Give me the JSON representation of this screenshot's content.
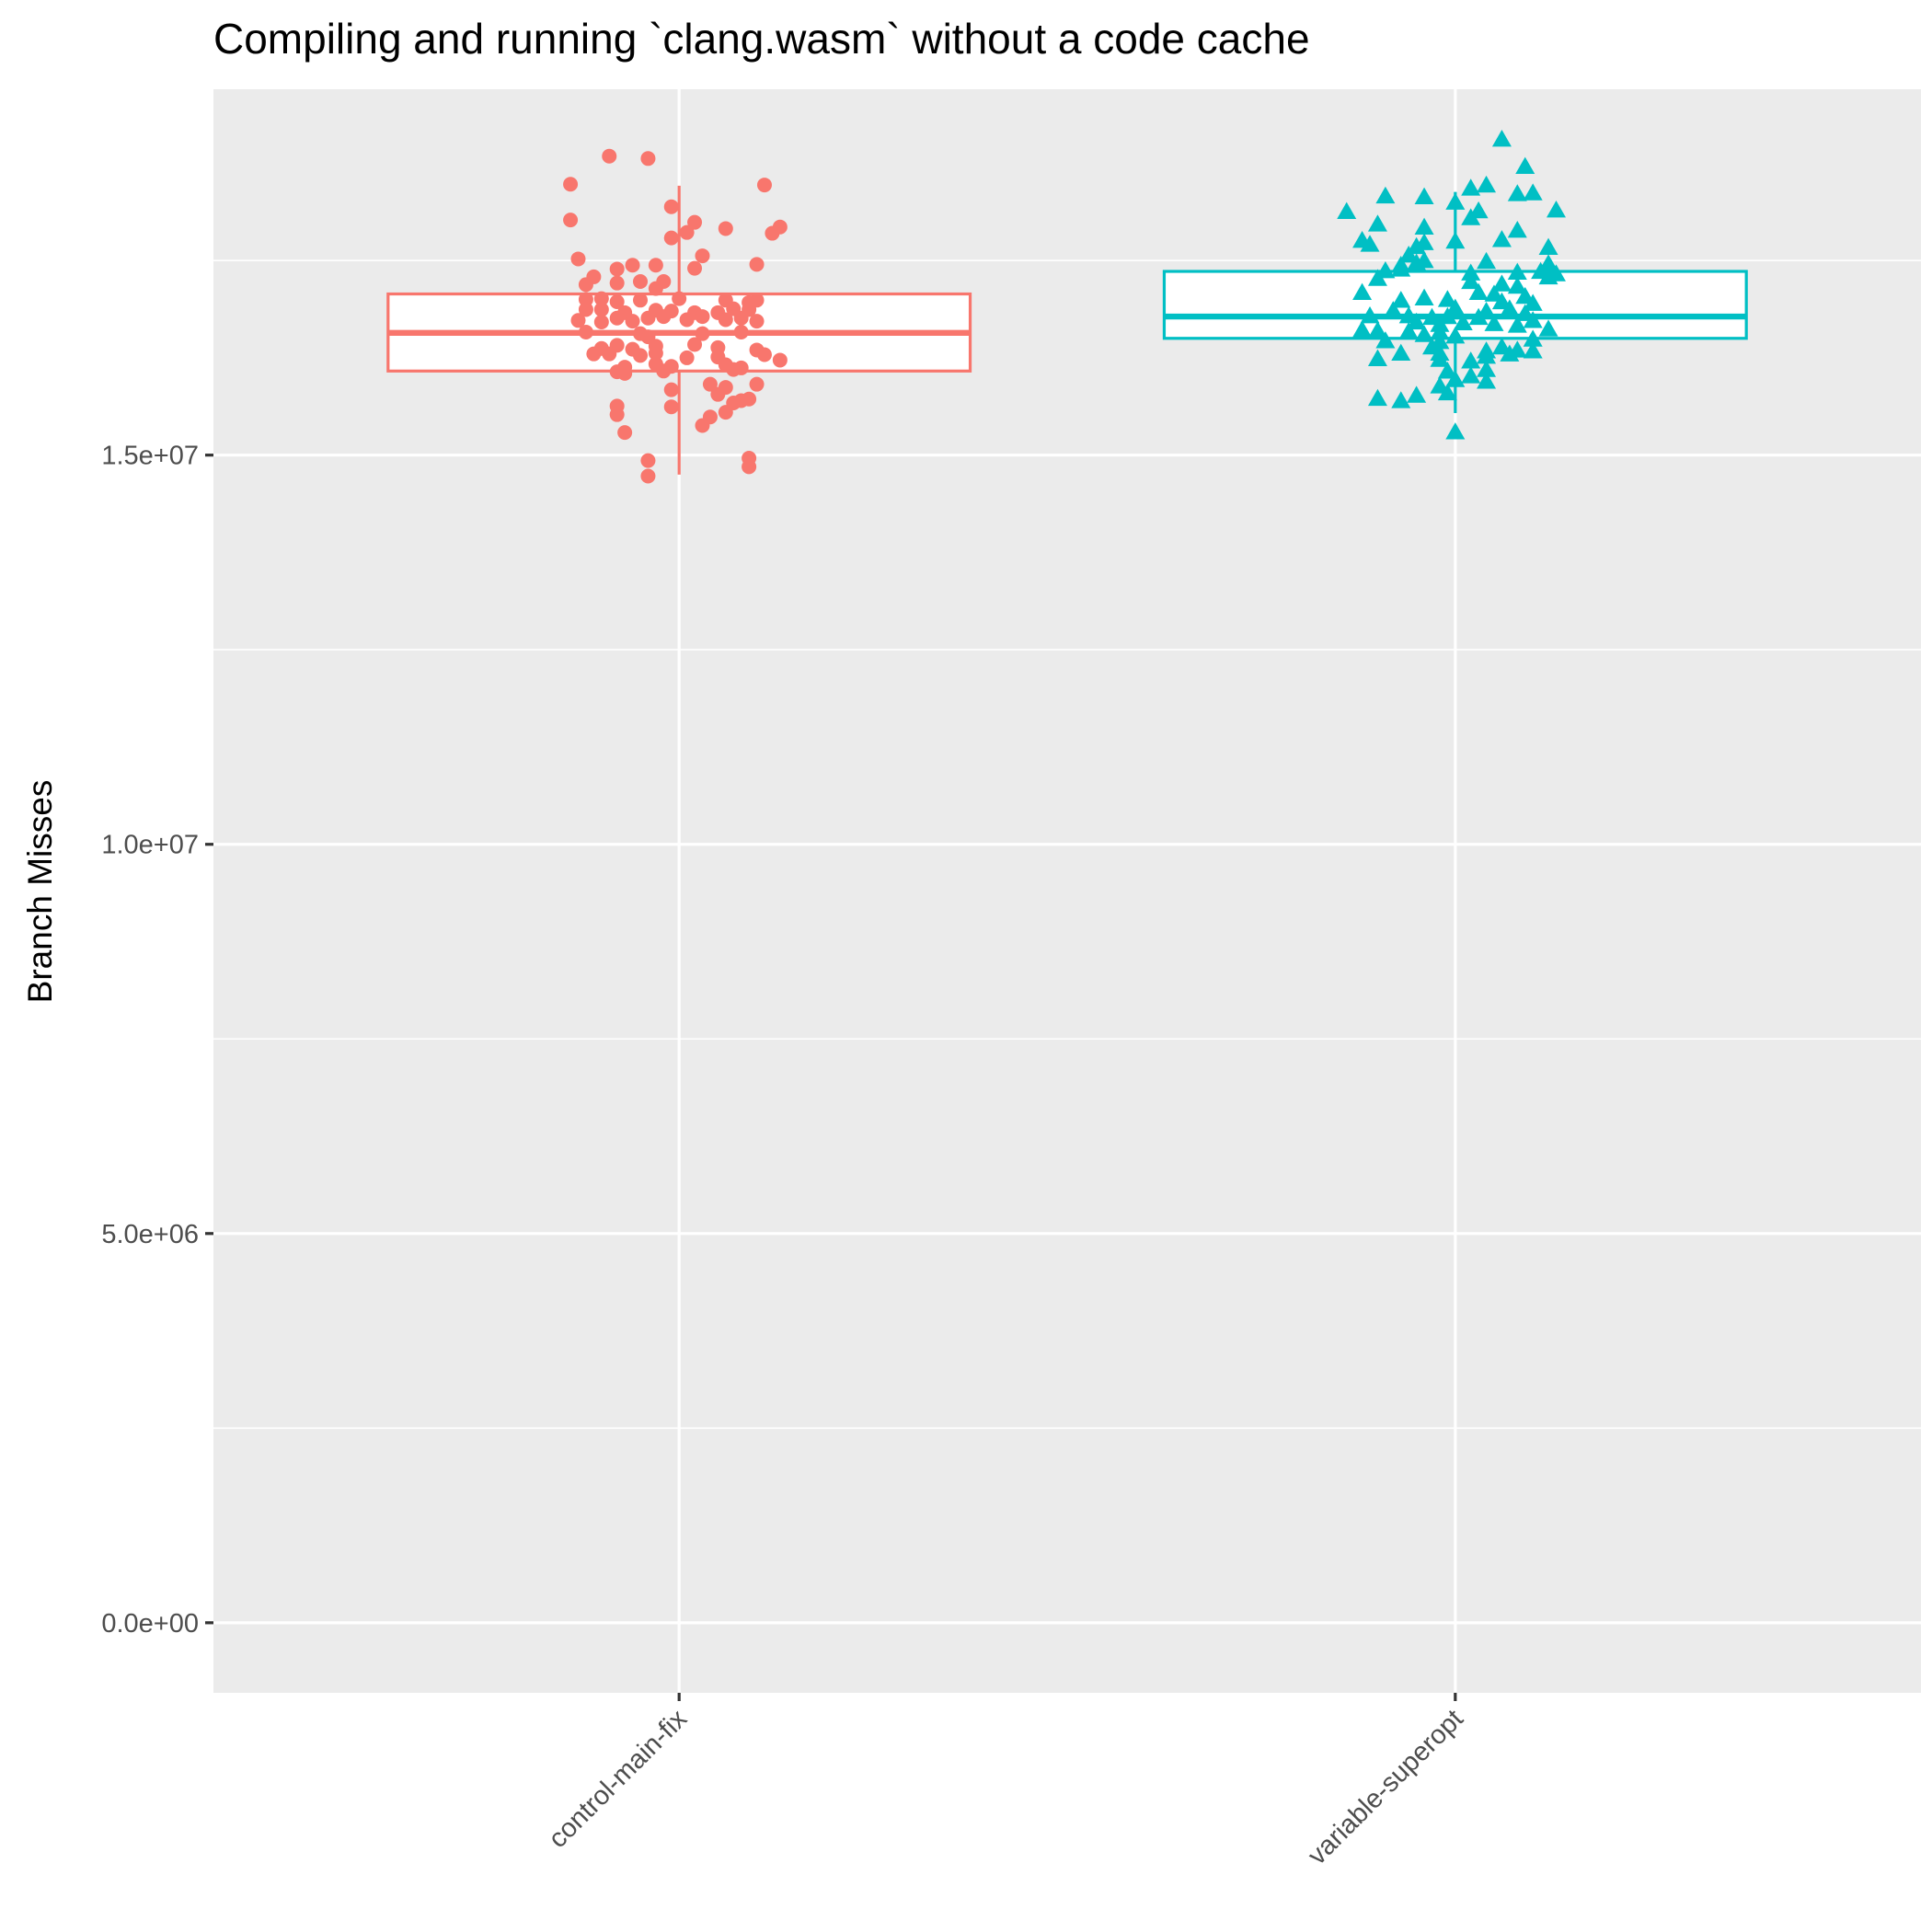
{
  "chart_data": {
    "type": "box",
    "title": "Compiling and running `clang.wasm` without a code cache",
    "xlabel": "",
    "ylabel": "Branch Misses",
    "ylim": [
      -900000,
      19700000
    ],
    "y_ticks": [
      0,
      5000000,
      10000000,
      15000000
    ],
    "y_tick_labels": [
      "0.0e+00",
      "5.0e+06",
      "1.0e+07",
      "1.5e+07"
    ],
    "grid": true,
    "legend": "none",
    "categories": [
      "control-main-fix",
      "variable-superopt"
    ],
    "series": [
      {
        "category": "control-main-fix",
        "color": "#F8766D",
        "marker": "circle",
        "box": {
          "whisker_low": 14750000,
          "q1": 16080000,
          "median": 16570000,
          "q3": 17070000,
          "whisker_high": 18460000
        },
        "points": [
          {
            "j": -0.09,
            "y": 18840000
          },
          {
            "j": -0.04,
            "y": 18810000
          },
          {
            "j": -0.14,
            "y": 18480000
          },
          {
            "j": 0.11,
            "y": 18470000
          },
          {
            "j": -0.01,
            "y": 18190000
          },
          {
            "j": -0.14,
            "y": 18020000
          },
          {
            "j": 0.02,
            "y": 17990000
          },
          {
            "j": 0.13,
            "y": 17930000
          },
          {
            "j": 0.06,
            "y": 17910000
          },
          {
            "j": 0.01,
            "y": 17860000
          },
          {
            "j": 0.12,
            "y": 17850000
          },
          {
            "j": -0.01,
            "y": 17790000
          },
          {
            "j": 0.03,
            "y": 17560000
          },
          {
            "j": -0.13,
            "y": 17520000
          },
          {
            "j": 0.1,
            "y": 17450000
          },
          {
            "j": -0.06,
            "y": 17440000
          },
          {
            "j": -0.03,
            "y": 17440000
          },
          {
            "j": -0.08,
            "y": 17390000
          },
          {
            "j": -0.02,
            "y": 17230000
          },
          {
            "j": 0.02,
            "y": 17400000
          },
          {
            "j": -0.11,
            "y": 17290000
          },
          {
            "j": -0.12,
            "y": 17190000
          },
          {
            "j": -0.05,
            "y": 17230000
          },
          {
            "j": -0.08,
            "y": 17210000
          },
          {
            "j": -0.03,
            "y": 17140000
          },
          {
            "j": -0.12,
            "y": 17000000
          },
          {
            "j": -0.1,
            "y": 17010000
          },
          {
            "j": -0.08,
            "y": 16970000
          },
          {
            "j": -0.05,
            "y": 16990000
          },
          {
            "j": 0.0,
            "y": 17010000
          },
          {
            "j": 0.06,
            "y": 16990000
          },
          {
            "j": 0.09,
            "y": 16960000
          },
          {
            "j": 0.1,
            "y": 16990000
          },
          {
            "j": -0.12,
            "y": 16870000
          },
          {
            "j": -0.1,
            "y": 16870000
          },
          {
            "j": -0.07,
            "y": 16830000
          },
          {
            "j": -0.03,
            "y": 16860000
          },
          {
            "j": -0.01,
            "y": 16850000
          },
          {
            "j": 0.02,
            "y": 16830000
          },
          {
            "j": 0.05,
            "y": 16830000
          },
          {
            "j": 0.07,
            "y": 16880000
          },
          {
            "j": 0.09,
            "y": 16870000
          },
          {
            "j": -0.13,
            "y": 16730000
          },
          {
            "j": -0.1,
            "y": 16710000
          },
          {
            "j": -0.08,
            "y": 16760000
          },
          {
            "j": -0.06,
            "y": 16720000
          },
          {
            "j": -0.04,
            "y": 16760000
          },
          {
            "j": -0.02,
            "y": 16780000
          },
          {
            "j": 0.01,
            "y": 16740000
          },
          {
            "j": 0.03,
            "y": 16780000
          },
          {
            "j": 0.06,
            "y": 16740000
          },
          {
            "j": 0.08,
            "y": 16760000
          },
          {
            "j": 0.1,
            "y": 16720000
          },
          {
            "j": -0.12,
            "y": 16580000
          },
          {
            "j": -0.05,
            "y": 16560000
          },
          {
            "j": 0.03,
            "y": 16560000
          },
          {
            "j": 0.08,
            "y": 16580000
          },
          {
            "j": -0.04,
            "y": 16520000
          },
          {
            "j": -0.1,
            "y": 16370000
          },
          {
            "j": -0.08,
            "y": 16410000
          },
          {
            "j": -0.06,
            "y": 16360000
          },
          {
            "j": -0.03,
            "y": 16400000
          },
          {
            "j": 0.02,
            "y": 16420000
          },
          {
            "j": 0.05,
            "y": 16380000
          },
          {
            "j": 0.1,
            "y": 16350000
          },
          {
            "j": -0.11,
            "y": 16300000
          },
          {
            "j": -0.09,
            "y": 16300000
          },
          {
            "j": -0.05,
            "y": 16280000
          },
          {
            "j": -0.03,
            "y": 16310000
          },
          {
            "j": 0.01,
            "y": 16250000
          },
          {
            "j": 0.05,
            "y": 16260000
          },
          {
            "j": 0.11,
            "y": 16290000
          },
          {
            "j": 0.13,
            "y": 16220000
          },
          {
            "j": -0.07,
            "y": 16130000
          },
          {
            "j": -0.03,
            "y": 16170000
          },
          {
            "j": -0.01,
            "y": 16140000
          },
          {
            "j": 0.06,
            "y": 16160000
          },
          {
            "j": 0.08,
            "y": 16120000
          },
          {
            "j": -0.08,
            "y": 16070000
          },
          {
            "j": -0.07,
            "y": 16050000
          },
          {
            "j": -0.02,
            "y": 16080000
          },
          {
            "j": 0.07,
            "y": 16100000
          },
          {
            "j": 0.04,
            "y": 15910000
          },
          {
            "j": 0.06,
            "y": 15870000
          },
          {
            "j": 0.1,
            "y": 15910000
          },
          {
            "j": -0.01,
            "y": 15840000
          },
          {
            "j": 0.05,
            "y": 15780000
          },
          {
            "j": 0.09,
            "y": 15720000
          },
          {
            "j": 0.08,
            "y": 15700000
          },
          {
            "j": -0.08,
            "y": 15630000
          },
          {
            "j": -0.01,
            "y": 15620000
          },
          {
            "j": 0.07,
            "y": 15670000
          },
          {
            "j": -0.08,
            "y": 15520000
          },
          {
            "j": 0.04,
            "y": 15490000
          },
          {
            "j": 0.06,
            "y": 15550000
          },
          {
            "j": 0.03,
            "y": 15380000
          },
          {
            "j": -0.07,
            "y": 15290000
          },
          {
            "j": 0.09,
            "y": 14960000
          },
          {
            "j": -0.04,
            "y": 14930000
          },
          {
            "j": 0.09,
            "y": 14850000
          },
          {
            "j": -0.04,
            "y": 14730000
          }
        ]
      },
      {
        "category": "variable-superopt",
        "color": "#00BFC4",
        "marker": "triangle",
        "box": {
          "whisker_low": 15540000,
          "q1": 16500000,
          "median": 16780000,
          "q3": 17360000,
          "whisker_high": 18380000
        },
        "points": [
          {
            "j": 0.06,
            "y": 19050000
          },
          {
            "j": 0.09,
            "y": 18700000
          },
          {
            "j": 0.04,
            "y": 18460000
          },
          {
            "j": 0.02,
            "y": 18420000
          },
          {
            "j": 0.08,
            "y": 18350000
          },
          {
            "j": 0.1,
            "y": 18360000
          },
          {
            "j": -0.09,
            "y": 18320000
          },
          {
            "j": -0.04,
            "y": 18310000
          },
          {
            "j": 0.0,
            "y": 18240000
          },
          {
            "j": -0.14,
            "y": 18120000
          },
          {
            "j": 0.03,
            "y": 18130000
          },
          {
            "j": 0.13,
            "y": 18140000
          },
          {
            "j": 0.02,
            "y": 18040000
          },
          {
            "j": -0.1,
            "y": 17960000
          },
          {
            "j": -0.04,
            "y": 17920000
          },
          {
            "j": 0.08,
            "y": 17880000
          },
          {
            "j": -0.12,
            "y": 17750000
          },
          {
            "j": -0.04,
            "y": 17720000
          },
          {
            "j": 0.0,
            "y": 17740000
          },
          {
            "j": 0.06,
            "y": 17760000
          },
          {
            "j": -0.11,
            "y": 17700000
          },
          {
            "j": -0.05,
            "y": 17670000
          },
          {
            "j": 0.12,
            "y": 17660000
          },
          {
            "j": -0.06,
            "y": 17560000
          },
          {
            "j": -0.04,
            "y": 17490000
          },
          {
            "j": 0.04,
            "y": 17480000
          },
          {
            "j": -0.07,
            "y": 17430000
          },
          {
            "j": -0.05,
            "y": 17460000
          },
          {
            "j": 0.12,
            "y": 17450000
          },
          {
            "j": -0.09,
            "y": 17360000
          },
          {
            "j": -0.07,
            "y": 17380000
          },
          {
            "j": 0.02,
            "y": 17330000
          },
          {
            "j": 0.08,
            "y": 17340000
          },
          {
            "j": 0.11,
            "y": 17350000
          },
          {
            "j": 0.13,
            "y": 17320000
          },
          {
            "j": 0.12,
            "y": 17280000
          },
          {
            "j": -0.1,
            "y": 17260000
          },
          {
            "j": 0.02,
            "y": 17220000
          },
          {
            "j": 0.06,
            "y": 17190000
          },
          {
            "j": 0.08,
            "y": 17160000
          },
          {
            "j": 0.03,
            "y": 17080000
          },
          {
            "j": 0.05,
            "y": 17060000
          },
          {
            "j": 0.09,
            "y": 17030000
          },
          {
            "j": -0.12,
            "y": 17080000
          },
          {
            "j": -0.04,
            "y": 17010000
          },
          {
            "j": -0.01,
            "y": 16990000
          },
          {
            "j": -0.07,
            "y": 16980000
          },
          {
            "j": 0.06,
            "y": 16960000
          },
          {
            "j": 0.1,
            "y": 16940000
          },
          {
            "j": -0.08,
            "y": 16850000
          },
          {
            "j": 0.0,
            "y": 16880000
          },
          {
            "j": 0.04,
            "y": 16840000
          },
          {
            "j": 0.07,
            "y": 16870000
          },
          {
            "j": 0.09,
            "y": 16810000
          },
          {
            "j": -0.11,
            "y": 16780000
          },
          {
            "j": -0.06,
            "y": 16780000
          },
          {
            "j": -0.03,
            "y": 16760000
          },
          {
            "j": -0.01,
            "y": 16770000
          },
          {
            "j": 0.03,
            "y": 16760000
          },
          {
            "j": 0.1,
            "y": 16720000
          },
          {
            "j": -0.05,
            "y": 16700000
          },
          {
            "j": -0.02,
            "y": 16670000
          },
          {
            "j": 0.01,
            "y": 16690000
          },
          {
            "j": 0.05,
            "y": 16680000
          },
          {
            "j": 0.08,
            "y": 16660000
          },
          {
            "j": -0.12,
            "y": 16600000
          },
          {
            "j": -0.1,
            "y": 16590000
          },
          {
            "j": -0.06,
            "y": 16580000
          },
          {
            "j": -0.02,
            "y": 16570000
          },
          {
            "j": 0.12,
            "y": 16610000
          },
          {
            "j": -0.04,
            "y": 16540000
          },
          {
            "j": 0.0,
            "y": 16520000
          },
          {
            "j": -0.09,
            "y": 16460000
          },
          {
            "j": -0.02,
            "y": 16450000
          },
          {
            "j": 0.1,
            "y": 16480000
          },
          {
            "j": -0.03,
            "y": 16380000
          },
          {
            "j": 0.06,
            "y": 16380000
          },
          {
            "j": 0.08,
            "y": 16340000
          },
          {
            "j": -0.07,
            "y": 16300000
          },
          {
            "j": -0.02,
            "y": 16300000
          },
          {
            "j": 0.04,
            "y": 16330000
          },
          {
            "j": 0.1,
            "y": 16330000
          },
          {
            "j": 0.07,
            "y": 16290000
          },
          {
            "j": 0.04,
            "y": 16260000
          },
          {
            "j": -0.1,
            "y": 16230000
          },
          {
            "j": -0.02,
            "y": 16220000
          },
          {
            "j": 0.02,
            "y": 16200000
          },
          {
            "j": -0.01,
            "y": 16070000
          },
          {
            "j": 0.04,
            "y": 16090000
          },
          {
            "j": 0.02,
            "y": 16010000
          },
          {
            "j": -0.02,
            "y": 15880000
          },
          {
            "j": 0.0,
            "y": 15960000
          },
          {
            "j": 0.04,
            "y": 15940000
          },
          {
            "j": -0.05,
            "y": 15760000
          },
          {
            "j": -0.01,
            "y": 15790000
          },
          {
            "j": -0.1,
            "y": 15720000
          },
          {
            "j": -0.07,
            "y": 15690000
          },
          {
            "j": 0.0,
            "y": 15290000
          }
        ]
      }
    ]
  }
}
